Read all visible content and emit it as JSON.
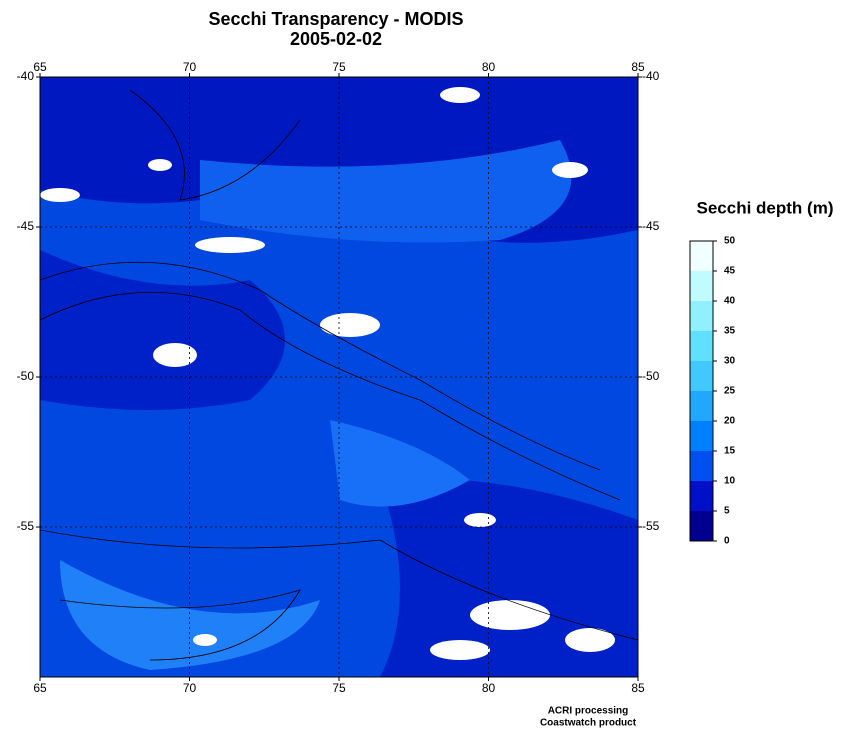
{
  "map": {
    "title": "Secchi Transparency - MODIS",
    "subtitle": "2005-02-02",
    "xlim": [
      65,
      85
    ],
    "xticks": [
      65,
      70,
      75,
      80,
      85
    ],
    "ylim": [
      -40,
      -60
    ],
    "yticks": [
      -40,
      -45,
      -50,
      -55
    ],
    "grid": true,
    "colorbar": {
      "label": "Secchi depth (m)",
      "ticks": [
        0,
        5,
        10,
        15,
        20,
        25,
        30,
        35,
        40,
        45,
        50
      ],
      "colors": [
        "#000090",
        "#0010c8",
        "#0050f0",
        "#0080ff",
        "#20a8ff",
        "#40c8ff",
        "#60e0ff",
        "#90f0ff",
        "#c0fcff",
        "#f0ffff"
      ]
    },
    "credits": [
      "ACRI processing",
      "Coastwatch product"
    ]
  }
}
